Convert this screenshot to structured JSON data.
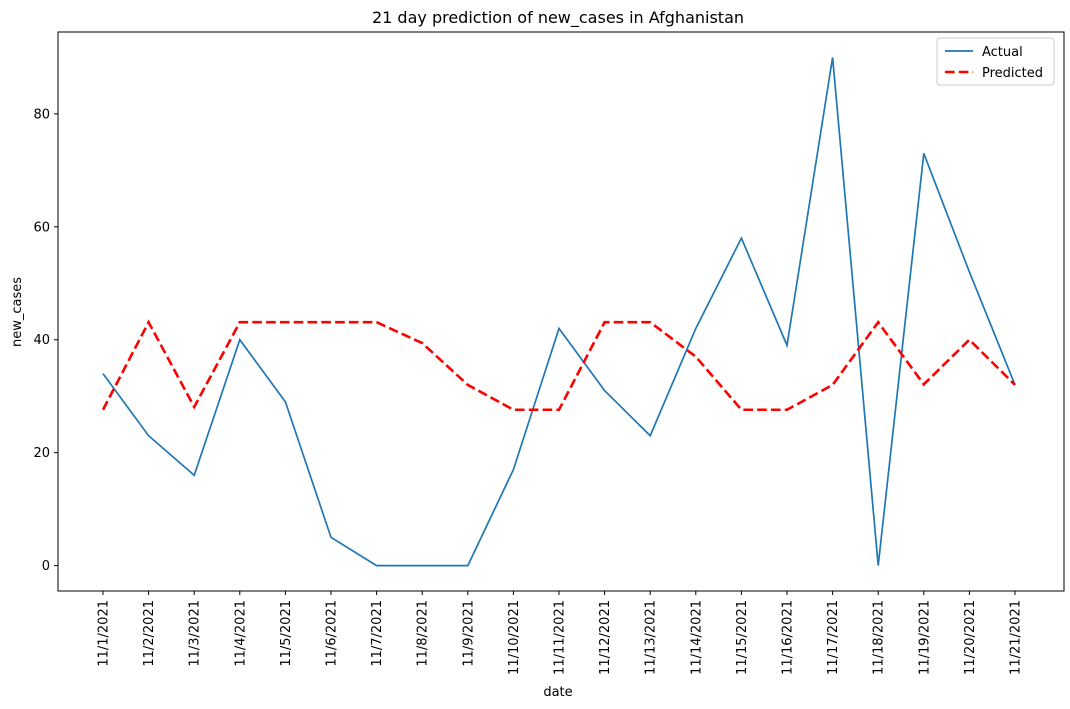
{
  "chart_data": {
    "type": "line",
    "title": "21 day prediction of new_cases in Afghanistan",
    "xlabel": "date",
    "ylabel": "new_cases",
    "categories": [
      "11/1/2021",
      "11/2/2021",
      "11/3/2021",
      "11/4/2021",
      "11/5/2021",
      "11/6/2021",
      "11/7/2021",
      "11/8/2021",
      "11/9/2021",
      "11/10/2021",
      "11/11/2021",
      "11/12/2021",
      "11/13/2021",
      "11/14/2021",
      "11/15/2021",
      "11/16/2021",
      "11/17/2021",
      "11/18/2021",
      "11/19/2021",
      "11/20/2021",
      "11/21/2021"
    ],
    "ylim": [
      -4.5,
      94.5
    ],
    "yticks": [
      0,
      20,
      40,
      60,
      80
    ],
    "grid": false,
    "legend_position": "top-right",
    "series": [
      {
        "name": "Actual",
        "color": "#1f77b4",
        "style": "solid",
        "values": [
          34,
          23,
          16,
          40,
          29,
          5,
          0,
          0,
          0,
          17,
          42,
          31,
          23,
          42,
          58,
          39,
          90,
          0,
          73,
          52,
          32
        ]
      },
      {
        "name": "Predicted",
        "color": "#ff0000",
        "style": "dashed",
        "values": [
          27.6,
          43.1,
          28.1,
          43.1,
          43.1,
          43.1,
          43.1,
          39.4,
          32,
          27.6,
          27.6,
          43.1,
          43.1,
          37,
          27.6,
          27.6,
          32,
          43.1,
          32.1,
          40,
          32
        ]
      }
    ]
  }
}
